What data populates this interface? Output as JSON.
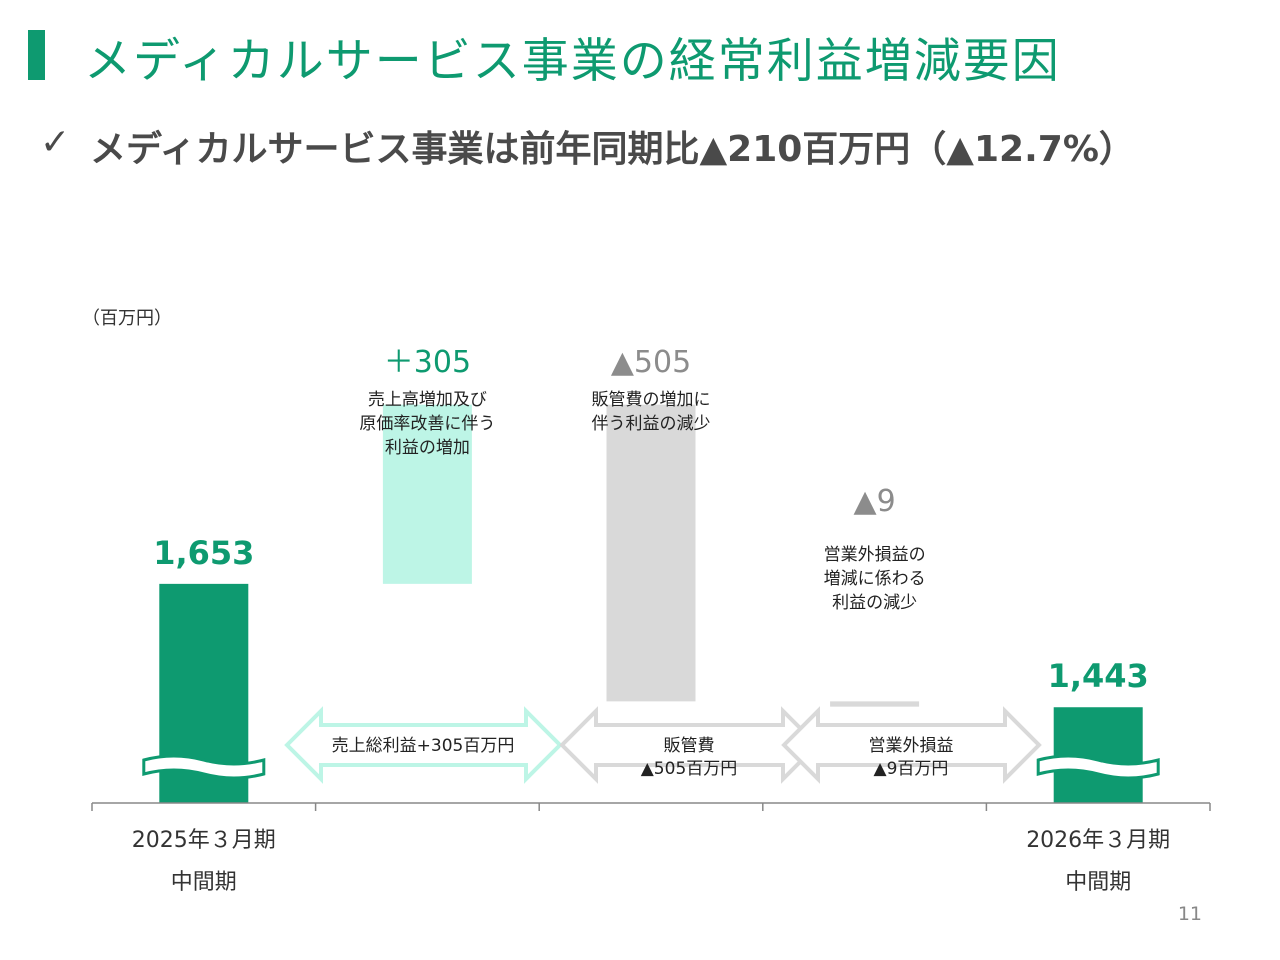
{
  "page": {
    "title": "メディカルサービス事業の経常利益増減要因",
    "check_icon": "✓",
    "subtitle": "メディカルサービス事業は前年同期比▲210百万円（▲12.7%）",
    "unit_label": "（百万円）",
    "page_number": "11"
  },
  "colors": {
    "accent": "#0e9a70",
    "increase": "#bdf5e6",
    "decrease": "#d9d9d9",
    "decrease_label": "#8c8c8c",
    "arrow_outline_light": "#bdf5e6",
    "arrow_outline_gray": "#d9d9d9"
  },
  "chart_data": {
    "type": "bar",
    "subtype": "waterfall",
    "categories": [
      "2025年３月期 中間期",
      "売上総利益",
      "販管費",
      "営業外損益",
      "2026年３月期 中間期"
    ],
    "category_labels": [
      [
        "2025年３月期",
        "中間期"
      ],
      [
        "",
        ""
      ],
      [
        "",
        ""
      ],
      [
        "",
        ""
      ],
      [
        "2026年３月期",
        "中間期"
      ]
    ],
    "steps": [
      {
        "kind": "total",
        "value": 1653,
        "label": "1,653"
      },
      {
        "kind": "increase",
        "value": 305,
        "label": "＋305",
        "note": [
          "売上高増加及び",
          "原価率改善に伴う",
          "利益の増加"
        ]
      },
      {
        "kind": "decrease",
        "value": -505,
        "label": "▲505",
        "note": [
          "販管費の増加に",
          "伴う利益の減少"
        ]
      },
      {
        "kind": "decrease",
        "value": -9,
        "label": "▲9",
        "note": [
          "営業外損益の",
          "増減に係わる",
          "利益の減少"
        ]
      },
      {
        "kind": "total",
        "value": 1443,
        "label": "1,443"
      }
    ],
    "arrow_labels": [
      [
        "売上総利益+305百万円"
      ],
      [
        "販管費",
        "▲505百万円"
      ],
      [
        "営業外損益",
        "▲9百万円"
      ]
    ],
    "axis_break": true
  }
}
